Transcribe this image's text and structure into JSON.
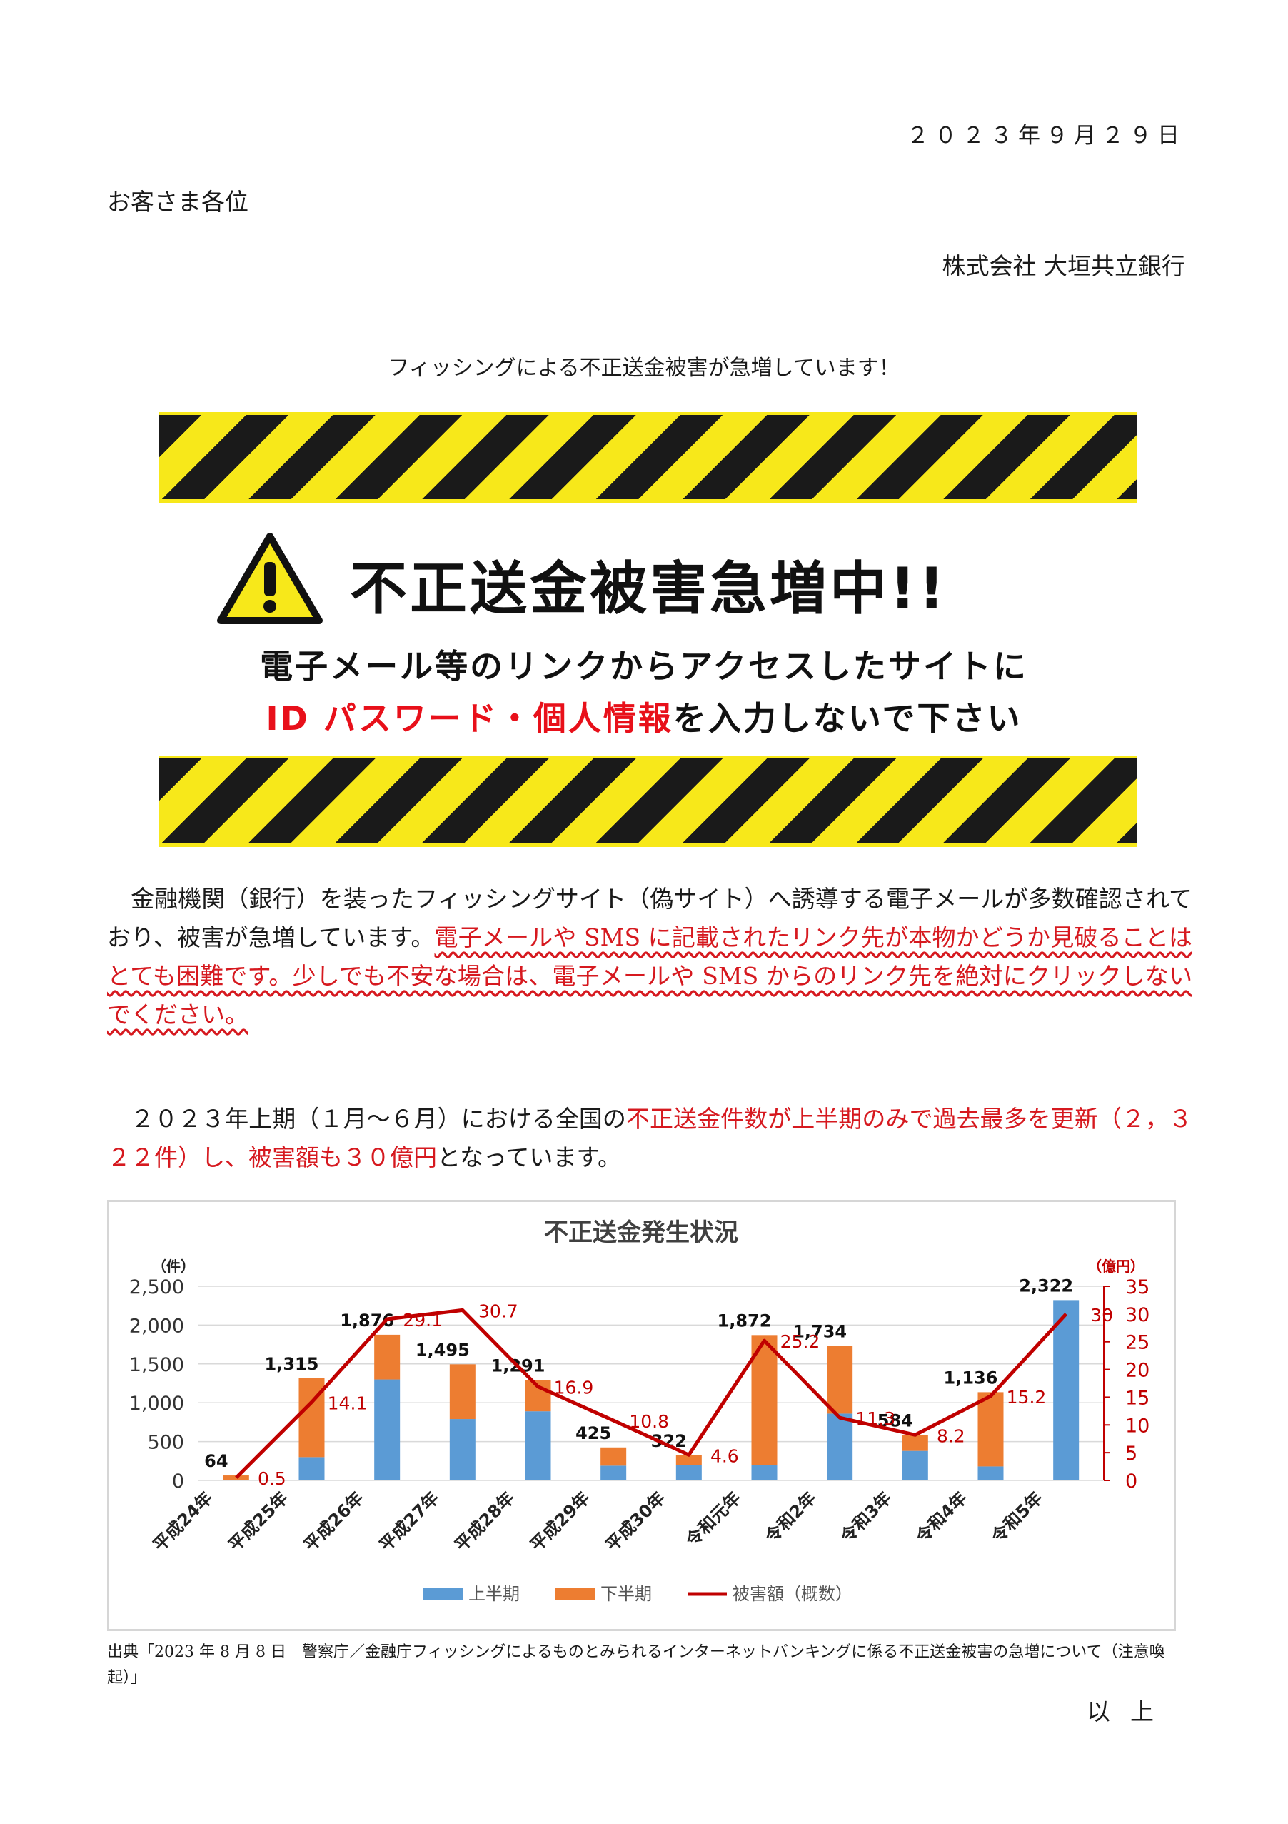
{
  "date": "２０２３年９月２９日",
  "recipient": "お客さま各位",
  "sender": "株式会社 大垣共立銀行",
  "notice_title": "フィッシングによる不正送金被害が急増しています！",
  "banner": {
    "headline": "不正送金被害急増中!!",
    "line1": "電子メール等のリンクからアクセスしたサイトに",
    "line2_red": "ID パスワード・個人情報",
    "line2_rest": "を入力しないで下さい"
  },
  "para1": {
    "normal": "　金融機関（銀行）を装ったフィッシングサイト（偽サイト）へ誘導する電子メールが多数確認されており、被害が急増しています。",
    "underlined": "電子メールや SMS に記載されたリンク先が本物かどうか見破ることはとても困難です。少しでも不安な場合は、電子メールや SMS からのリンク先を絶対にクリックしないでください。"
  },
  "para2": {
    "part1": "　２０２３年上期（１月～６月）における全国の",
    "red1": "不正送金件数が上半期のみで過去最多を更新（２，３２２件）し、被害額も３０億円",
    "part2": "となっています。"
  },
  "source_text": "出典「2023 年 8 月 8 日　警察庁／金融庁フィッシングによるものとみられるインターネットバンキングに係る不正送金被害の急増について（注意喚起）」",
  "closing": "以上",
  "colors": {
    "first_half": "#5b9bd5",
    "second_half": "#ed7d31",
    "damage_line": "#c00000",
    "warning_yellow": "#f7e81a"
  },
  "chart_data": {
    "type": "bar",
    "title": "不正送金発生状況",
    "ylabel_left": "（件）",
    "ylabel_right": "（億円）",
    "categories": [
      "平成24年",
      "平成25年",
      "平成26年",
      "平成27年",
      "平成28年",
      "平成29年",
      "平成30年",
      "令和元年",
      "令和2年",
      "令和3年",
      "令和4年",
      "令和5年"
    ],
    "series": [
      {
        "name": "上半期",
        "kind": "stacked-bar",
        "values": [
          0,
          300,
          1300,
          790,
          890,
          190,
          200,
          200,
          860,
          380,
          180,
          2322
        ]
      },
      {
        "name": "下半期",
        "kind": "stacked-bar",
        "values": [
          64,
          1015,
          576,
          705,
          401,
          235,
          122,
          1672,
          874,
          204,
          956,
          0
        ]
      },
      {
        "name": "被害額（概数）",
        "kind": "line",
        "axis": "right",
        "values": [
          0.5,
          14.1,
          29.1,
          30.7,
          16.9,
          10.8,
          4.6,
          25.2,
          11.3,
          8.2,
          15.2,
          30
        ]
      }
    ],
    "totals": [
      "64",
      "1,315",
      "1,876",
      "1,495",
      "1,291",
      "425",
      "322",
      "1,872",
      "1,734",
      "584",
      "1,136",
      "2,322"
    ],
    "damage_labels": [
      "0.5",
      "14.1",
      "29.1",
      "30.7",
      "16.9",
      "10.8",
      "4.6",
      "25.2",
      "11.3",
      "8.2",
      "15.2",
      "30"
    ],
    "ylim_left": [
      0,
      2500
    ],
    "yticks_left": [
      "0",
      "500",
      "1,000",
      "1,500",
      "2,000",
      "2,500"
    ],
    "ylim_right": [
      0,
      35
    ],
    "yticks_right": [
      "0",
      "5",
      "10",
      "15",
      "20",
      "25",
      "30",
      "35"
    ],
    "grid": true,
    "legend": "bottom"
  }
}
